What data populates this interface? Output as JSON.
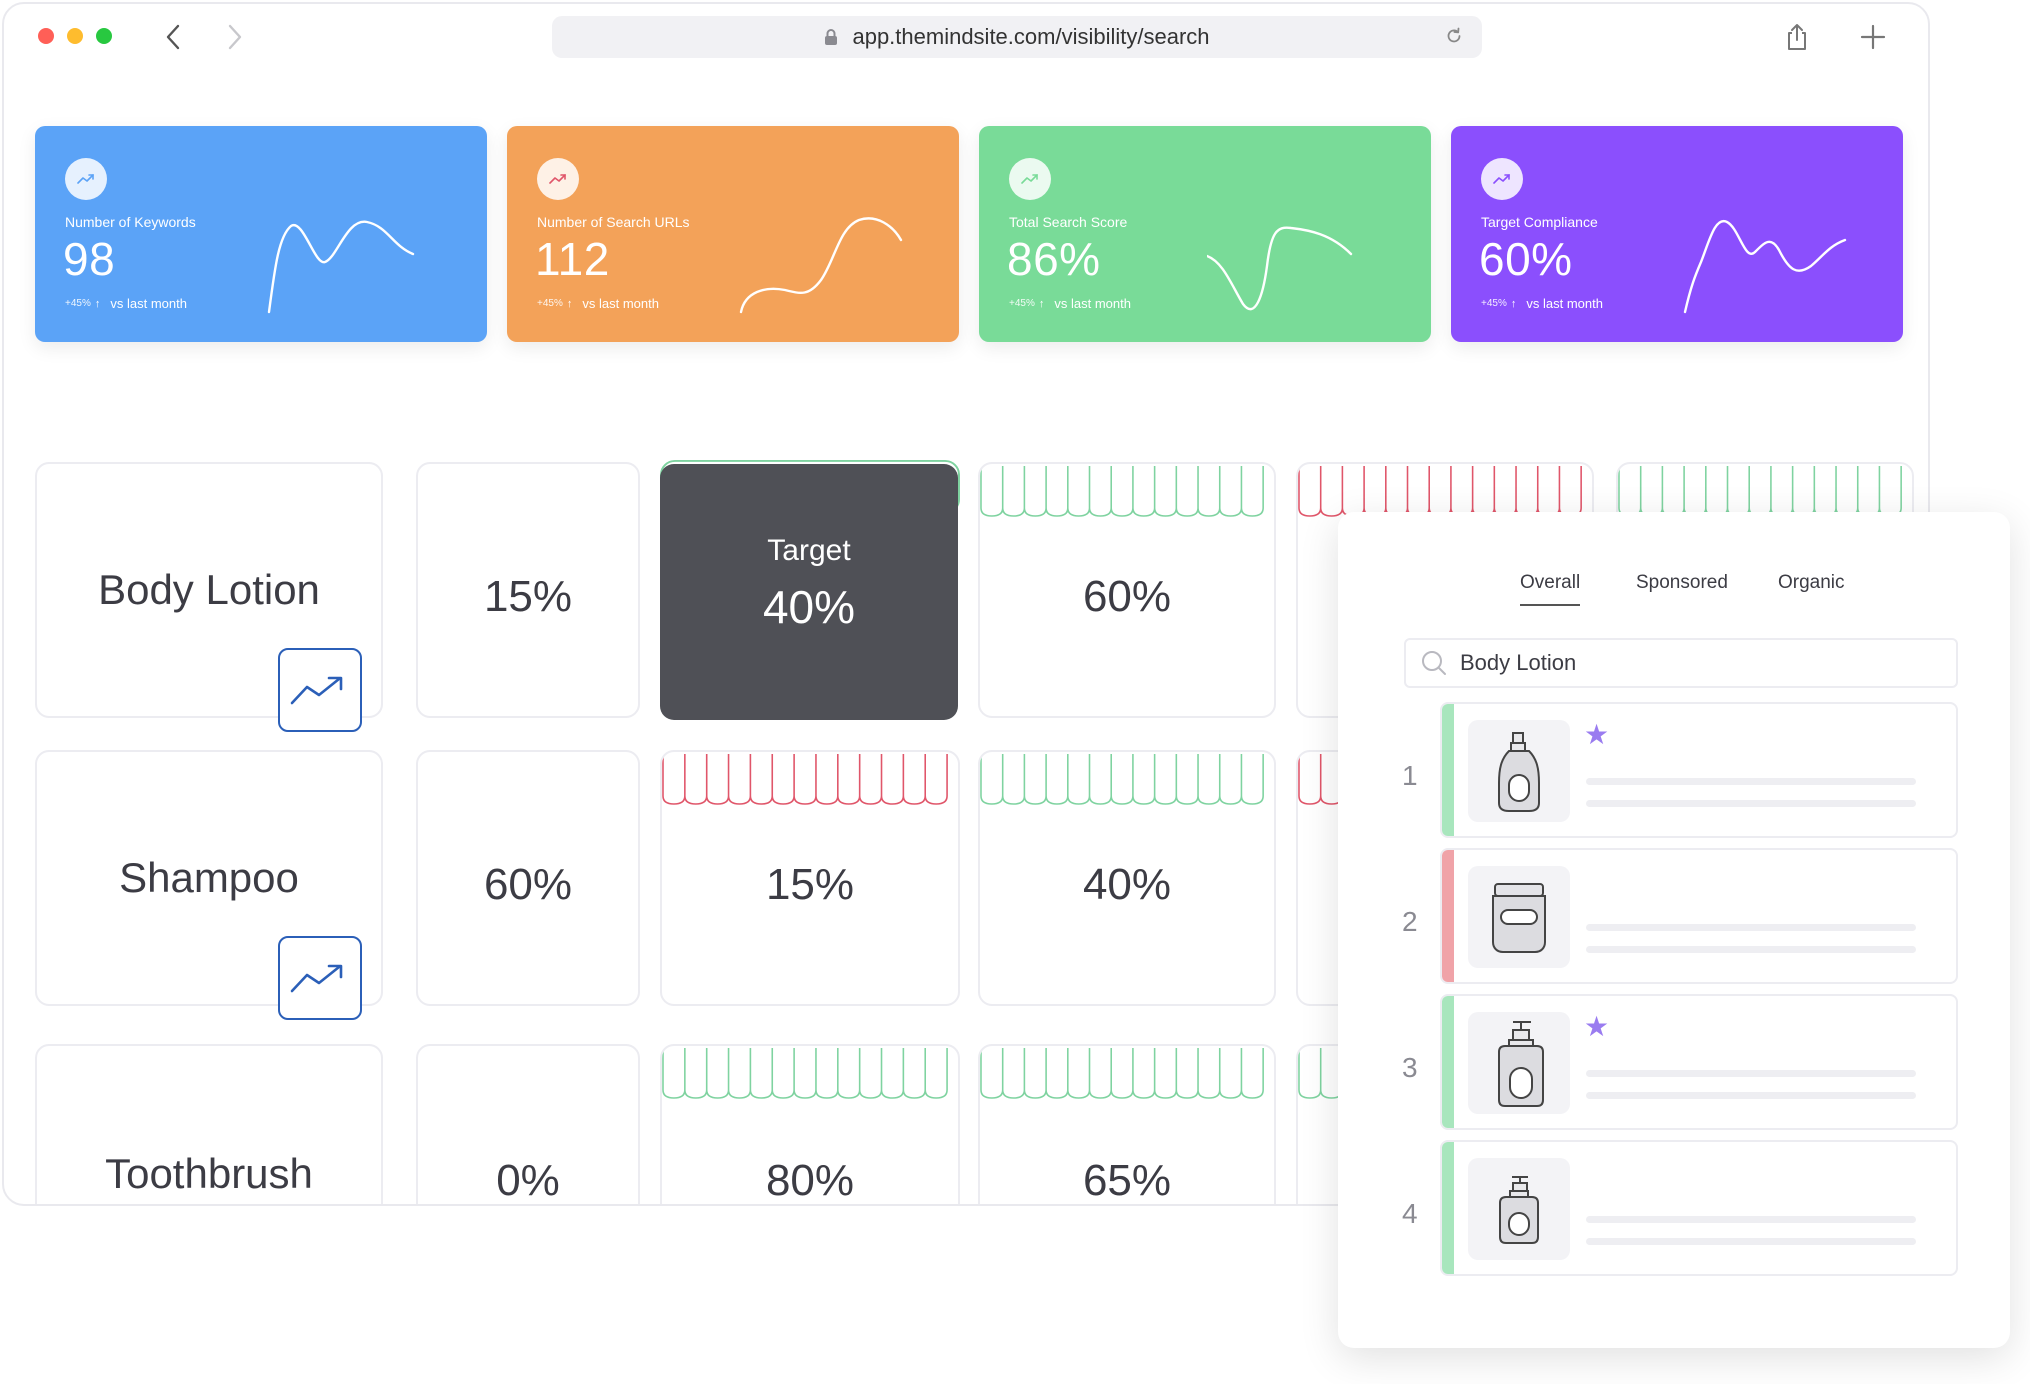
{
  "browser": {
    "url": "app.themindsite.com/visibility/search"
  },
  "kpis": [
    {
      "label": "Number of Keywords",
      "value": "98",
      "delta": "+45%",
      "compare": "vs last month",
      "color": "#5ba3f7"
    },
    {
      "label": "Number of Search URLs",
      "value": "112",
      "delta": "+45%",
      "compare": "vs last month",
      "color": "#f3a259"
    },
    {
      "label": "Total Search Score",
      "value": "86%",
      "delta": "+45%",
      "compare": "vs last month",
      "color": "#79db98"
    },
    {
      "label": "Target Compliance",
      "value": "60%",
      "delta": "+45%",
      "compare": "vs last month",
      "color": "#8b4ffd"
    }
  ],
  "grid": {
    "rows": [
      {
        "name": "Body Lotion",
        "share": "15%",
        "target_label": "Target",
        "target_value": "40%",
        "col3": "60%"
      },
      {
        "name": "Shampoo",
        "share": "60%",
        "col2": "15%",
        "col3": "40%"
      },
      {
        "name": "Toothbrush",
        "share": "0%",
        "col2": "80%",
        "col3": "65%"
      }
    ]
  },
  "panel": {
    "tabs": [
      "Overall",
      "Sponsored",
      "Organic"
    ],
    "active_tab": "Overall",
    "search_value": "Body Lotion",
    "results": [
      {
        "rank": "1",
        "status": "green",
        "starred": true,
        "product": "pump-bottle"
      },
      {
        "rank": "2",
        "status": "red",
        "starred": false,
        "product": "jar"
      },
      {
        "rank": "3",
        "status": "green",
        "starred": true,
        "product": "dispenser-bottle"
      },
      {
        "rank": "4",
        "status": "green",
        "starred": false,
        "product": "small-dispenser"
      }
    ]
  },
  "colors": {
    "status_green": "#a8e6bd",
    "status_red": "#f0a3a8",
    "awning_green": "#7fd3a0",
    "awning_red": "#e0566a",
    "star": "#9a7cf0"
  }
}
